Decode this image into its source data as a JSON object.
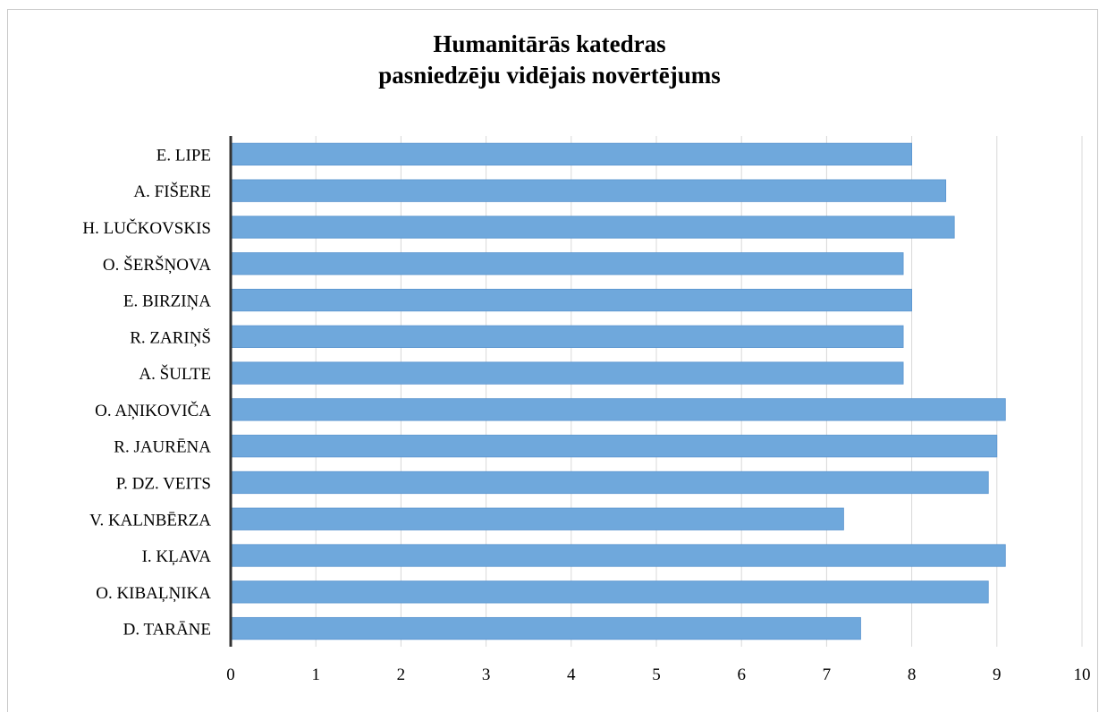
{
  "chart_data": {
    "type": "bar",
    "orientation": "horizontal",
    "title": [
      "Humanitārās katedras",
      "pasniedzēju vidējais novērtējums"
    ],
    "categories": [
      "E. LIPE",
      "A. FIŠERE",
      "H. LUČKOVSKIS",
      "O. ŠERŠŅOVA",
      "E. BIRZIŅA",
      "R. ZARIŅŠ",
      "A. ŠULTE",
      "O. AŅIKOVIČA",
      "R. JAURĒNA",
      "P. DZ. VEITS",
      "V. KALNBĒRZA",
      "I. KĻAVA",
      "O. KIBAĻŅIKA",
      "D. TARĀNE"
    ],
    "values": [
      8.0,
      8.4,
      8.5,
      7.9,
      8.0,
      7.9,
      7.9,
      9.1,
      9.0,
      8.9,
      7.2,
      9.1,
      8.9,
      7.4
    ],
    "xlim": [
      0,
      10
    ],
    "xticks": [
      "0",
      "1",
      "2",
      "3",
      "4",
      "5",
      "6",
      "7",
      "8",
      "9",
      "10"
    ],
    "grid": true,
    "legend": "none",
    "colors": {
      "bar": "#6fa8dc",
      "bar_edge": "#5b95cf",
      "axis": "#333333",
      "grid": "#d9d9d9"
    }
  }
}
